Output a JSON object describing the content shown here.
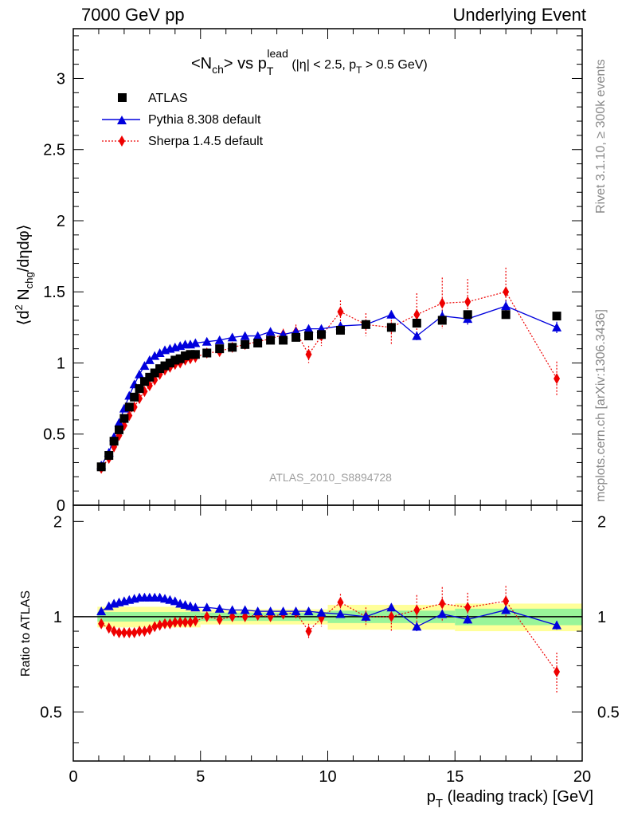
{
  "header": {
    "left": "7000 GeV pp",
    "right": "Underlying Event"
  },
  "side": {
    "rivet": "Rivet 3.1.10, ≥ 300k events",
    "mcplots": "mcplots.cern.ch [arXiv:1306.3436]"
  },
  "colors": {
    "atlas": "#000000",
    "pythia": "#0000dd",
    "sherpa": "#ee0000",
    "band_inner": "#99f599",
    "band_outer": "#ffff99",
    "analysis_label": "#a0a0a0"
  },
  "chart_data": [
    {
      "type": "scatter",
      "panel": "main",
      "title_parts": {
        "pre": "<N",
        "ch_sub": "ch",
        "mid": "> vs p",
        "T_sub": "T",
        "lead_sup": "lead",
        "cut_pre": " (|η| < 2.5, p",
        "cut_T_sub": "T",
        "cut_post": " > 0.5 GeV)"
      },
      "ylabel": "⟨d² N_chg/dηdφ⟩",
      "ylabel_parts": {
        "open": "⟨d",
        "sup": "2",
        "mid": " N",
        "sub": "chg",
        "post": "/dηdφ⟩"
      },
      "analysis_label": "ATLAS_2010_S8894728",
      "xlim": [
        0,
        20
      ],
      "ylim": [
        0,
        3.35
      ],
      "yticks": [
        0,
        0.5,
        1,
        1.5,
        2,
        2.5,
        3
      ],
      "ytick_labels": [
        "0",
        "0.5",
        "1",
        "1.5",
        "2",
        "2.5",
        "3"
      ],
      "legend_position": "top-left",
      "series": [
        {
          "name": "ATLAS",
          "marker": "square",
          "x": [
            1.1,
            1.4,
            1.6,
            1.8,
            2.0,
            2.2,
            2.4,
            2.6,
            2.8,
            3.0,
            3.2,
            3.4,
            3.6,
            3.8,
            4.0,
            4.2,
            4.4,
            4.6,
            4.8,
            5.25,
            5.75,
            6.25,
            6.75,
            7.25,
            7.75,
            8.25,
            8.75,
            9.25,
            9.75,
            10.5,
            11.5,
            12.5,
            13.5,
            14.5,
            15.5,
            17.0,
            19.0
          ],
          "y": [
            0.27,
            0.35,
            0.45,
            0.53,
            0.61,
            0.69,
            0.76,
            0.82,
            0.87,
            0.9,
            0.93,
            0.96,
            0.98,
            1.0,
            1.02,
            1.03,
            1.05,
            1.06,
            1.06,
            1.07,
            1.1,
            1.11,
            1.13,
            1.14,
            1.16,
            1.16,
            1.18,
            1.19,
            1.2,
            1.23,
            1.27,
            1.25,
            1.28,
            1.3,
            1.34,
            1.34,
            1.33
          ]
        },
        {
          "name": "Pythia 8.308 default",
          "marker": "triangle",
          "line": "solid",
          "x": [
            1.1,
            1.4,
            1.6,
            1.8,
            2.0,
            2.2,
            2.4,
            2.6,
            2.8,
            3.0,
            3.2,
            3.4,
            3.6,
            3.8,
            4.0,
            4.2,
            4.4,
            4.6,
            4.8,
            5.25,
            5.75,
            6.25,
            6.75,
            7.25,
            7.75,
            8.25,
            8.75,
            9.25,
            9.75,
            10.5,
            11.5,
            12.5,
            13.5,
            14.5,
            15.5,
            17.0,
            19.0
          ],
          "y": [
            0.28,
            0.37,
            0.48,
            0.58,
            0.68,
            0.77,
            0.85,
            0.92,
            0.98,
            1.02,
            1.05,
            1.07,
            1.09,
            1.1,
            1.11,
            1.12,
            1.13,
            1.13,
            1.14,
            1.15,
            1.16,
            1.18,
            1.19,
            1.19,
            1.22,
            1.2,
            1.22,
            1.24,
            1.24,
            1.26,
            1.27,
            1.34,
            1.19,
            1.33,
            1.31,
            1.4,
            1.25
          ],
          "yerr": [
            0.01,
            0.01,
            0.01,
            0.01,
            0.01,
            0.01,
            0.01,
            0.01,
            0.01,
            0.01,
            0.01,
            0.01,
            0.01,
            0.01,
            0.01,
            0.01,
            0.01,
            0.01,
            0.01,
            0.01,
            0.01,
            0.01,
            0.01,
            0.01,
            0.01,
            0.01,
            0.02,
            0.02,
            0.02,
            0.02,
            0.02,
            0.03,
            0.03,
            0.04,
            0.04,
            0.04,
            0.04
          ]
        },
        {
          "name": "Sherpa 1.4.5 default",
          "marker": "diamond",
          "line": "dotted",
          "x": [
            1.1,
            1.4,
            1.6,
            1.8,
            2.0,
            2.2,
            2.4,
            2.6,
            2.8,
            3.0,
            3.2,
            3.4,
            3.6,
            3.8,
            4.0,
            4.2,
            4.4,
            4.6,
            4.8,
            5.25,
            5.75,
            6.25,
            6.75,
            7.25,
            7.75,
            8.25,
            8.75,
            9.25,
            9.75,
            10.5,
            11.5,
            12.5,
            13.5,
            14.5,
            15.5,
            17.0,
            19.0
          ],
          "y": [
            0.26,
            0.33,
            0.41,
            0.49,
            0.56,
            0.63,
            0.69,
            0.75,
            0.8,
            0.84,
            0.88,
            0.92,
            0.95,
            0.97,
            0.99,
            1.0,
            1.02,
            1.03,
            1.04,
            1.07,
            1.08,
            1.11,
            1.13,
            1.15,
            1.17,
            1.2,
            1.22,
            1.06,
            1.19,
            1.36,
            1.27,
            1.25,
            1.34,
            1.42,
            1.43,
            1.5,
            0.89
          ],
          "yerr": [
            0.01,
            0.01,
            0.01,
            0.01,
            0.01,
            0.01,
            0.01,
            0.01,
            0.01,
            0.01,
            0.01,
            0.01,
            0.01,
            0.01,
            0.01,
            0.01,
            0.01,
            0.01,
            0.01,
            0.02,
            0.02,
            0.02,
            0.03,
            0.03,
            0.03,
            0.04,
            0.05,
            0.06,
            0.07,
            0.08,
            0.08,
            0.12,
            0.15,
            0.18,
            0.16,
            0.17,
            0.12
          ]
        }
      ]
    },
    {
      "type": "scatter",
      "panel": "ratio",
      "ylabel": "Ratio to ATLAS",
      "xlabel": "p_T (leading track) [GeV]",
      "xlabel_parts": {
        "pre": "p",
        "sub": "T",
        "post": " (leading track) [GeV]"
      },
      "xlim": [
        0,
        20
      ],
      "ylim": [
        0.35,
        2.25
      ],
      "xticks": [
        0,
        5,
        10,
        15,
        20
      ],
      "xtick_labels": [
        "0",
        "5",
        "10",
        "15",
        "20"
      ],
      "yticks": [
        0.5,
        1,
        2
      ],
      "ytick_labels": [
        "0.5",
        "1",
        "2"
      ],
      "bands": [
        {
          "x0": 0.95,
          "x1": 5.0,
          "inner": 0.035,
          "outer": 0.075
        },
        {
          "x0": 5.0,
          "x1": 10.0,
          "inner": 0.03,
          "outer": 0.055
        },
        {
          "x0": 10.0,
          "x1": 15.0,
          "inner": 0.045,
          "outer": 0.09
        },
        {
          "x0": 15.0,
          "x1": 20.0,
          "inner": 0.06,
          "outer": 0.1
        }
      ],
      "series": [
        {
          "name": "Pythia 8.308 default",
          "x": [
            1.1,
            1.4,
            1.6,
            1.8,
            2.0,
            2.2,
            2.4,
            2.6,
            2.8,
            3.0,
            3.2,
            3.4,
            3.6,
            3.8,
            4.0,
            4.2,
            4.4,
            4.6,
            4.8,
            5.25,
            5.75,
            6.25,
            6.75,
            7.25,
            7.75,
            8.25,
            8.75,
            9.25,
            9.75,
            10.5,
            11.5,
            12.5,
            13.5,
            14.5,
            15.5,
            17.0,
            19.0
          ],
          "y": [
            1.04,
            1.08,
            1.1,
            1.11,
            1.12,
            1.13,
            1.14,
            1.15,
            1.15,
            1.15,
            1.15,
            1.15,
            1.14,
            1.13,
            1.12,
            1.1,
            1.09,
            1.08,
            1.07,
            1.07,
            1.06,
            1.05,
            1.05,
            1.04,
            1.04,
            1.04,
            1.04,
            1.04,
            1.03,
            1.02,
            1.0,
            1.07,
            0.93,
            1.02,
            0.98,
            1.05,
            0.94
          ],
          "yerr": [
            0.01,
            0.01,
            0.01,
            0.01,
            0.01,
            0.01,
            0.01,
            0.01,
            0.01,
            0.01,
            0.01,
            0.01,
            0.01,
            0.01,
            0.01,
            0.01,
            0.01,
            0.01,
            0.01,
            0.01,
            0.01,
            0.01,
            0.01,
            0.01,
            0.01,
            0.01,
            0.02,
            0.02,
            0.02,
            0.02,
            0.02,
            0.03,
            0.03,
            0.03,
            0.03,
            0.03,
            0.03
          ]
        },
        {
          "name": "Sherpa 1.4.5 default",
          "x": [
            1.1,
            1.4,
            1.6,
            1.8,
            2.0,
            2.2,
            2.4,
            2.6,
            2.8,
            3.0,
            3.2,
            3.4,
            3.6,
            3.8,
            4.0,
            4.2,
            4.4,
            4.6,
            4.8,
            5.25,
            5.75,
            6.25,
            6.75,
            7.25,
            7.75,
            8.25,
            8.75,
            9.25,
            9.75,
            10.5,
            11.5,
            12.5,
            13.5,
            14.5,
            15.5,
            17.0,
            19.0
          ],
          "y": [
            0.95,
            0.92,
            0.9,
            0.89,
            0.89,
            0.89,
            0.89,
            0.9,
            0.9,
            0.91,
            0.93,
            0.94,
            0.95,
            0.95,
            0.96,
            0.96,
            0.96,
            0.96,
            0.97,
            1.0,
            0.98,
            1.0,
            1.0,
            1.01,
            1.0,
            1.02,
            1.03,
            0.9,
            0.99,
            1.11,
            1.0,
            1.0,
            1.05,
            1.1,
            1.07,
            1.12,
            0.67
          ],
          "yerr": [
            0.01,
            0.01,
            0.01,
            0.01,
            0.01,
            0.01,
            0.01,
            0.01,
            0.01,
            0.01,
            0.01,
            0.01,
            0.01,
            0.01,
            0.01,
            0.01,
            0.01,
            0.01,
            0.01,
            0.02,
            0.02,
            0.02,
            0.02,
            0.03,
            0.03,
            0.03,
            0.04,
            0.05,
            0.06,
            0.07,
            0.07,
            0.1,
            0.12,
            0.14,
            0.12,
            0.13,
            0.1
          ]
        }
      ]
    }
  ]
}
